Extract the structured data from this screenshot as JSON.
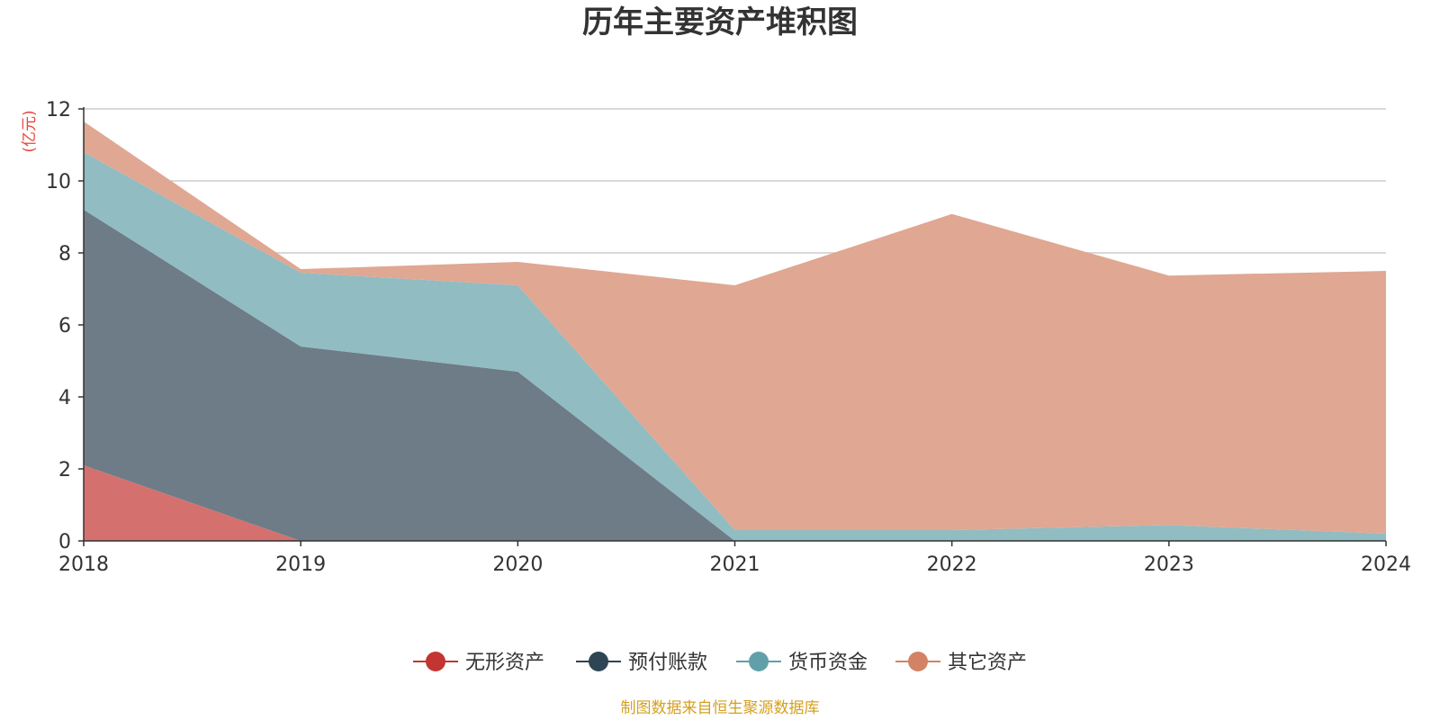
{
  "chart_data": {
    "type": "area",
    "stacked": true,
    "title": "历年主要资产堆积图",
    "unit_label": "(亿元)",
    "x": [
      "2018",
      "2019",
      "2020",
      "2021",
      "2022",
      "2023",
      "2024"
    ],
    "ylim": [
      0,
      12
    ],
    "yticks": [
      0,
      2,
      4,
      6,
      8,
      10,
      12
    ],
    "grid": true,
    "legend_position": "bottom-center",
    "series": [
      {
        "name": "无形资产",
        "color": "#c23531",
        "fill": "#d4716f",
        "values": [
          2.1,
          0,
          0,
          0,
          0,
          0,
          0
        ]
      },
      {
        "name": "预付账款",
        "color": "#2f4554",
        "fill": "#6e7c87",
        "values": [
          7.1,
          5.4,
          4.7,
          0,
          0,
          0,
          0
        ]
      },
      {
        "name": "货币资金",
        "color": "#61a0a8",
        "fill": "#91bcc2",
        "values": [
          1.6,
          2.05,
          2.4,
          0.3,
          0.3,
          0.44,
          0.2
        ]
      },
      {
        "name": "其它资产",
        "color": "#d48265",
        "fill": "#e0a792",
        "values": [
          0.85,
          0.1,
          0.65,
          6.8,
          8.78,
          6.93,
          7.3
        ]
      }
    ]
  },
  "source_text": "制图数据来自恒生聚源数据库",
  "colors": {
    "unit": "#e8463a",
    "source": "#d4a020",
    "grid": "#cccccc",
    "axis": "#333333"
  }
}
